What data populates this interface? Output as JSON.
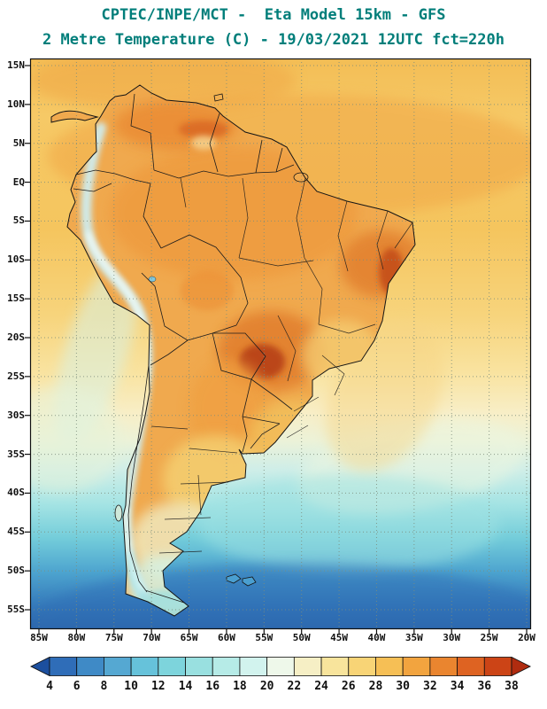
{
  "header": {
    "line1": "CPTEC/INPE/MCT -  Eta Model 15km - GFS",
    "line2": "2 Metre Temperature (C) - 19/03/2021 12UTC fct=220h",
    "title_color": "#007e7a"
  },
  "map": {
    "lat_labels": [
      "15N",
      "10N",
      "5N",
      "EQ",
      "5S",
      "10S",
      "15S",
      "20S",
      "25S",
      "30S",
      "35S",
      "40S",
      "45S",
      "50S",
      "55S"
    ],
    "lon_labels": [
      "85W",
      "80W",
      "75W",
      "70W",
      "65W",
      "60W",
      "55W",
      "50W",
      "45W",
      "40W",
      "35W",
      "30W",
      "25W",
      "20W"
    ]
  },
  "colorbar": {
    "unit": "C",
    "tick_labels": [
      "4",
      "6",
      "8",
      "10",
      "12",
      "14",
      "16",
      "18",
      "20",
      "22",
      "24",
      "26",
      "28",
      "30",
      "32",
      "34",
      "36",
      "38"
    ],
    "colors": [
      "#1c4f9e",
      "#2f6db8",
      "#3f8ac6",
      "#55a8d2",
      "#66c2da",
      "#7dd4dc",
      "#99e0e0",
      "#b6ebe7",
      "#d2f3ee",
      "#eef8ea",
      "#f6efc5",
      "#f8e49c",
      "#f8d476",
      "#f6bf55",
      "#f2a43f",
      "#ea852f",
      "#de6322",
      "#cc4416",
      "#b02c10"
    ]
  }
}
